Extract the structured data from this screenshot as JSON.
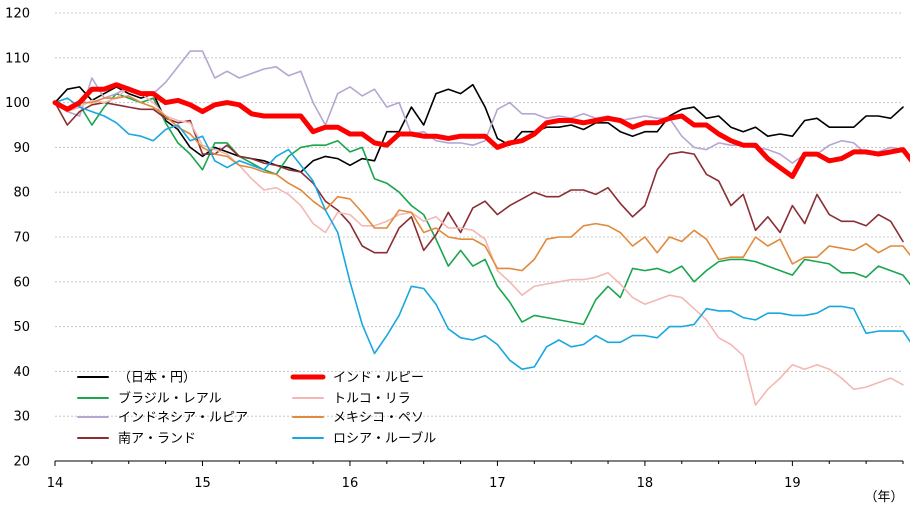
{
  "chart_data": {
    "type": "line",
    "title": "",
    "xlabel": "",
    "ylabel": "",
    "x_unit_label": "（年）",
    "ylim": [
      20,
      120
    ],
    "yticks": [
      20,
      30,
      40,
      50,
      60,
      70,
      80,
      90,
      100,
      110,
      120
    ],
    "xlim": [
      0,
      69
    ],
    "xticks": [
      {
        "x": 0,
        "label": "14"
      },
      {
        "x": 12,
        "label": "15"
      },
      {
        "x": 24,
        "label": "16"
      },
      {
        "x": 36,
        "label": "17"
      },
      {
        "x": 48,
        "label": "18"
      },
      {
        "x": 60,
        "label": "19"
      }
    ],
    "grid": "horizontal",
    "legend_position": "bottom-left",
    "series": [
      {
        "name": "（日本・円）",
        "color": "#000000",
        "width": 1.6,
        "values": [
          100,
          103,
          103.5,
          100.5,
          102,
          103.5,
          102,
          101,
          102,
          96,
          94,
          90,
          88,
          90,
          89,
          88,
          87.5,
          87,
          86,
          85.5,
          84.5,
          87,
          88,
          87.5,
          86,
          87.5,
          87,
          93.5,
          93.5,
          99,
          95,
          102,
          103,
          102,
          104,
          99,
          92,
          90.5,
          93.5,
          93.5,
          94.5,
          94.5,
          95,
          94,
          95.5,
          95.5,
          93.5,
          92.5,
          93.5,
          93.5,
          97,
          98.5,
          99,
          96.5,
          97,
          94.5,
          93.5,
          94.5,
          92.5,
          93,
          92.5,
          96,
          96.5,
          94.5,
          94.5,
          94.5,
          97,
          97,
          96.5,
          99
        ]
      },
      {
        "name": "ブラジル・レアル",
        "color": "#1aa64e",
        "width": 1.6,
        "values": [
          100,
          99,
          99.5,
          95,
          99,
          102,
          101,
          100,
          101,
          95.5,
          91,
          88.5,
          85,
          91,
          91,
          88,
          86.5,
          85,
          84,
          88,
          90,
          90.5,
          90.5,
          91.5,
          89,
          90,
          83,
          82,
          80,
          77,
          75,
          69.5,
          63.5,
          67,
          63.5,
          65,
          59,
          55.5,
          51,
          52.5,
          52,
          51.5,
          51,
          50.5,
          56,
          59,
          56.5,
          63,
          62.5,
          63,
          62,
          63.5,
          60,
          62.5,
          64.5,
          65,
          65,
          64.5,
          63.5,
          62.5,
          61.5,
          65,
          64.5,
          64,
          62,
          62,
          61,
          63.5,
          62.5,
          61.5,
          58
        ]
      },
      {
        "name": "インドネシア・ルピア",
        "color": "#b6a6d3",
        "width": 1.6,
        "values": [
          100,
          98,
          97,
          105.5,
          101,
          102,
          103.5,
          102,
          102,
          104.5,
          108,
          111.5,
          111.5,
          105.5,
          107,
          105.5,
          106.5,
          107.5,
          108,
          106,
          107,
          100,
          95,
          102,
          103.5,
          101.5,
          103,
          99,
          100,
          93,
          93.5,
          91.5,
          91,
          91,
          90.5,
          91.5,
          98.5,
          100,
          97.5,
          97.5,
          96.5,
          97,
          96.5,
          97.5,
          96.5,
          97,
          96,
          96.5,
          97,
          96.5,
          96.5,
          92.5,
          90,
          89.5,
          91,
          90.5,
          90.5,
          90,
          89.5,
          88.5,
          86.5,
          88.5,
          88.5,
          90.5,
          91.5,
          91,
          88.5,
          89,
          90,
          89.5,
          87
        ]
      },
      {
        "name": "南ア・ランド",
        "color": "#8b2e34",
        "width": 1.6,
        "values": [
          100,
          95,
          98,
          99.5,
          100,
          99.5,
          99,
          98.5,
          98.5,
          96.5,
          95.5,
          96,
          88.5,
          88.5,
          90.5,
          88,
          87.5,
          86.5,
          86,
          85,
          84.5,
          82,
          78,
          76,
          73,
          68,
          66.5,
          66.5,
          72,
          74.5,
          67,
          70.5,
          75.5,
          71,
          76.5,
          78,
          75,
          77,
          78.5,
          80,
          79,
          79,
          80.5,
          80.5,
          79.5,
          81,
          77.5,
          74.5,
          77,
          85,
          88.5,
          89,
          88.5,
          84,
          82.5,
          77,
          79.5,
          71.5,
          74.5,
          71,
          77,
          73,
          79.5,
          75,
          73.5,
          73.5,
          72.5,
          75,
          73.5,
          69
        ]
      },
      {
        "name": "インド・ルピー",
        "color": "#ff0000",
        "width": 5,
        "values": [
          100,
          98.5,
          100,
          103,
          103,
          104,
          103,
          102,
          102,
          100,
          100.5,
          99.5,
          98,
          99.5,
          100,
          99.5,
          97.5,
          97,
          97,
          97,
          97,
          93.5,
          94.5,
          94.5,
          93,
          93,
          91,
          90.5,
          93,
          93,
          92.5,
          92.5,
          92,
          92.5,
          92.5,
          92.5,
          90,
          91,
          91.5,
          93,
          95.5,
          96,
          96,
          95.5,
          96,
          96.5,
          96,
          94.5,
          95.5,
          95.5,
          96.5,
          97,
          95,
          95,
          93,
          91.5,
          90.5,
          90.5,
          87.5,
          85.5,
          83.5,
          88.5,
          88.5,
          87,
          87.5,
          89,
          89,
          88.5,
          89,
          89.5,
          86
        ]
      },
      {
        "name": "トルコ・リラ",
        "color": "#f4b8b4",
        "width": 1.6,
        "values": [
          100,
          98,
          99,
          100.5,
          100,
          101,
          103.5,
          102,
          100,
          97,
          96,
          95.5,
          90.5,
          89.5,
          88.5,
          86,
          83,
          80.5,
          81,
          79.5,
          77,
          73,
          71,
          75.5,
          75,
          72.5,
          72.5,
          73.5,
          75,
          75.5,
          73.5,
          74.5,
          72,
          72,
          71.5,
          69.5,
          62.5,
          60,
          57,
          59,
          59.5,
          60,
          60.5,
          60.5,
          61,
          62,
          59.5,
          56.5,
          55,
          56,
          57,
          56.5,
          54,
          51.5,
          47.5,
          46,
          43.5,
          32.5,
          36,
          38.5,
          41.5,
          40.5,
          41.5,
          40.5,
          38.5,
          36,
          36.5,
          37.5,
          38.5,
          37
        ]
      },
      {
        "name": "メキシコ・ペソ",
        "color": "#e08a3c",
        "width": 1.6,
        "values": [
          100,
          98.5,
          100,
          100,
          101,
          101,
          101.5,
          100,
          99,
          97,
          94.5,
          93,
          90,
          88.5,
          88,
          86,
          85.5,
          84.5,
          84,
          82,
          80.5,
          78,
          76,
          79,
          78.5,
          75.5,
          72,
          72,
          76,
          75.5,
          71,
          72,
          70,
          69.5,
          69.5,
          68,
          63,
          63,
          62.5,
          65,
          69.5,
          70,
          70,
          72.5,
          73,
          72.5,
          71,
          68,
          70,
          66.5,
          70,
          69,
          71.5,
          69.5,
          65,
          65.5,
          65.5,
          70,
          68,
          69.5,
          64,
          65.5,
          65.5,
          68,
          67.5,
          67,
          68.5,
          66.5,
          68,
          68,
          64.5
        ]
      },
      {
        "name": "ロシア・ルーブル",
        "color": "#19a7e0",
        "width": 1.6,
        "values": [
          100,
          101,
          99,
          98,
          97,
          95.5,
          93,
          92.5,
          91.5,
          94,
          95,
          91.5,
          92.5,
          87,
          85.5,
          87,
          86,
          85,
          88,
          89.5,
          86,
          82.5,
          76,
          71,
          60,
          50.5,
          44,
          48,
          52.5,
          59,
          58.5,
          55,
          49.5,
          47.5,
          47,
          48,
          46,
          42.5,
          40.5,
          41,
          45.5,
          47,
          45.5,
          46,
          48,
          46.5,
          46.5,
          48,
          48,
          47.5,
          50,
          50,
          50.5,
          54,
          53.5,
          53.5,
          52,
          51.5,
          53,
          53,
          52.5,
          52.5,
          53,
          54.5,
          54.5,
          54,
          48.5,
          49,
          49,
          49,
          45
        ]
      }
    ]
  }
}
